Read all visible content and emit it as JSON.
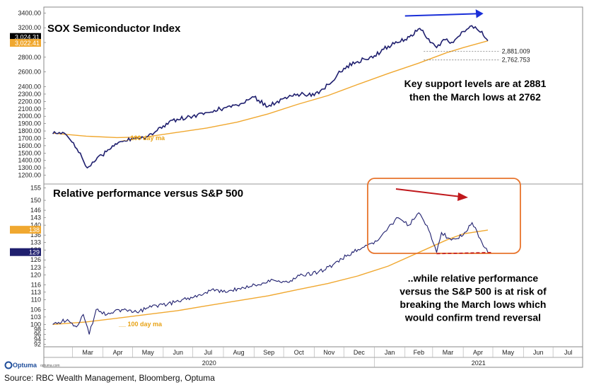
{
  "source": "Source: RBC Wealth Management, Bloomberg, Optuma",
  "footer": {
    "brand": "Optuma",
    "brand_url": "optuma.com"
  },
  "chart_data": [
    {
      "type": "line",
      "title": "SOX Semiconductor Index",
      "annotation": [
        "Key support levels are at 2881",
        "then the March lows at 2762"
      ],
      "ma_label": "100 day ma",
      "y_ticks": [
        "3400.00",
        "3200.00",
        "3000.00",
        "2800.00",
        "2600.00",
        "2400.00",
        "2300.00",
        "2200.00",
        "2100.00",
        "2000.00",
        "1900.00",
        "1800.00",
        "1700.00",
        "1600.00",
        "1500.00",
        "1400.00",
        "1300.00",
        "1200.00"
      ],
      "ylim": [
        1100,
        3480
      ],
      "price_badges": [
        "3,024.31",
        "3,022.41"
      ],
      "support_levels": [
        {
          "value": 2881.009,
          "label": "2,881.009"
        },
        {
          "value": 2762.753,
          "label": "2,762.753"
        }
      ],
      "colors": {
        "price": "#1f1f6e",
        "ma": "#f0a830",
        "arrow": "#1a2fd8"
      },
      "series": [
        {
          "name": "SOX",
          "x": [
            "2020-02-10",
            "2020-02-20",
            "2020-03-02",
            "2020-03-09",
            "2020-03-16",
            "2020-03-23",
            "2020-03-31",
            "2020-04-15",
            "2020-04-30",
            "2020-05-15",
            "2020-06-01",
            "2020-06-15",
            "2020-07-01",
            "2020-07-15",
            "2020-08-01",
            "2020-08-15",
            "2020-09-01",
            "2020-09-15",
            "2020-10-01",
            "2020-10-15",
            "2020-11-01",
            "2020-11-15",
            "2020-12-01",
            "2020-12-15",
            "2021-01-01",
            "2021-01-15",
            "2021-02-01",
            "2021-02-16",
            "2021-02-25",
            "2021-03-05",
            "2021-03-12",
            "2021-03-22",
            "2021-04-01",
            "2021-04-08",
            "2021-04-15",
            "2021-04-20",
            "2021-04-26"
          ],
          "values": [
            1760,
            1780,
            1640,
            1500,
            1300,
            1380,
            1470,
            1620,
            1700,
            1720,
            1870,
            1960,
            2000,
            2050,
            2110,
            2150,
            2260,
            2130,
            2240,
            2300,
            2280,
            2430,
            2650,
            2740,
            2820,
            2950,
            3040,
            3190,
            3050,
            2930,
            3040,
            3000,
            3150,
            3220,
            3180,
            3150,
            3024
          ]
        },
        {
          "name": "100 day ma",
          "x": [
            "2020-02-10",
            "2020-03-15",
            "2020-04-15",
            "2020-05-15",
            "2020-06-15",
            "2020-07-15",
            "2020-08-15",
            "2020-09-15",
            "2020-10-15",
            "2020-11-15",
            "2020-12-15",
            "2021-01-15",
            "2021-02-15",
            "2021-03-15",
            "2021-04-01",
            "2021-04-26"
          ],
          "values": [
            1770,
            1730,
            1710,
            1720,
            1780,
            1840,
            1920,
            2030,
            2160,
            2280,
            2430,
            2580,
            2720,
            2860,
            2930,
            3022
          ]
        }
      ]
    },
    {
      "type": "line",
      "title": "Relative performance versus S&P 500",
      "annotation": [
        "..while relative performance",
        "versus the S&P 500 is at risk of",
        "breaking the March lows which",
        "would confirm trend reversal"
      ],
      "ma_label": "100 day ma",
      "y_ticks": [
        "155",
        "150",
        "146",
        "143",
        "140",
        "136",
        "133",
        "130",
        "126",
        "123",
        "120",
        "116",
        "113",
        "110",
        "106",
        "103",
        "100",
        "98",
        "96",
        "94",
        "92"
      ],
      "ylim": [
        91,
        156
      ],
      "price_badges": [
        "138",
        "129"
      ],
      "colors": {
        "price": "#1f1f6e",
        "ma": "#f0a830",
        "arrow": "#c0181c",
        "box": "#e8742c",
        "support": "#c0181c"
      },
      "series": [
        {
          "name": "Relative",
          "x": [
            "2020-02-10",
            "2020-02-25",
            "2020-03-05",
            "2020-03-12",
            "2020-03-18",
            "2020-03-25",
            "2020-04-05",
            "2020-04-20",
            "2020-05-05",
            "2020-05-20",
            "2020-06-05",
            "2020-06-20",
            "2020-07-05",
            "2020-07-20",
            "2020-08-05",
            "2020-08-20",
            "2020-09-05",
            "2020-09-20",
            "2020-10-05",
            "2020-10-20",
            "2020-11-05",
            "2020-11-20",
            "2020-12-05",
            "2020-12-20",
            "2021-01-05",
            "2021-01-15",
            "2021-01-25",
            "2021-02-05",
            "2021-02-15",
            "2021-02-25",
            "2021-03-05",
            "2021-03-10",
            "2021-03-20",
            "2021-04-01",
            "2021-04-10",
            "2021-04-20",
            "2021-04-26"
          ],
          "values": [
            100,
            102,
            99,
            104,
            96,
            106,
            104,
            106,
            105,
            107,
            108,
            110,
            111,
            114,
            113,
            115,
            116,
            118,
            117,
            120,
            121,
            124,
            128,
            131,
            134,
            139,
            143,
            140,
            145,
            138,
            129,
            137,
            134,
            136,
            141,
            133,
            129
          ]
        },
        {
          "name": "100 day ma",
          "x": [
            "2020-02-10",
            "2020-03-15",
            "2020-04-15",
            "2020-05-15",
            "2020-06-15",
            "2020-07-15",
            "2020-08-15",
            "2020-09-15",
            "2020-10-15",
            "2020-11-15",
            "2020-12-15",
            "2021-01-15",
            "2021-02-15",
            "2021-03-15",
            "2021-04-01",
            "2021-04-26"
          ],
          "values": [
            100,
            101,
            102.5,
            104,
            105.5,
            107.5,
            109.5,
            111.5,
            114,
            116.5,
            119.5,
            123.5,
            129,
            134,
            136.5,
            138
          ]
        }
      ]
    }
  ],
  "x_axis": {
    "months": [
      "Mar",
      "Apr",
      "May",
      "Jun",
      "Jul",
      "Aug",
      "Sep",
      "Oct",
      "Nov",
      "Dec",
      "Jan",
      "Feb",
      "Mar",
      "Apr",
      "May",
      "Jun",
      "Jul"
    ],
    "years": [
      "2020",
      "2021"
    ]
  }
}
